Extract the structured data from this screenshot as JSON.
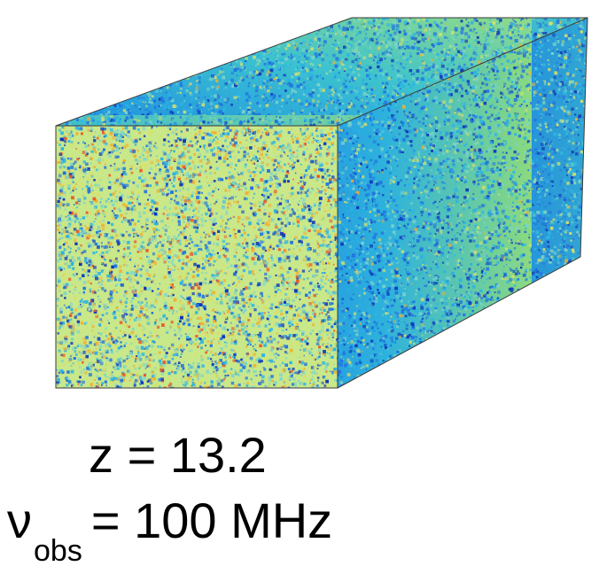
{
  "labels": {
    "redshift_symbol": "z",
    "redshift_value": "13.2",
    "frequency_symbol": "ν",
    "frequency_subscript": "obs",
    "frequency_value": "100 MHz",
    "equals": "="
  },
  "colors": {
    "front_base": "#c9e88a",
    "side_base": "#2ea3df",
    "top_base": "#2fb6d9",
    "edge": "#3a3a3a",
    "speckle_palette": [
      "#0a2fb8",
      "#1e6fe0",
      "#29b3e6",
      "#7fd6c8",
      "#d9e06a",
      "#f0b030",
      "#e8582a"
    ]
  },
  "icons": {
    "cube": "simulation-cube-icon"
  }
}
